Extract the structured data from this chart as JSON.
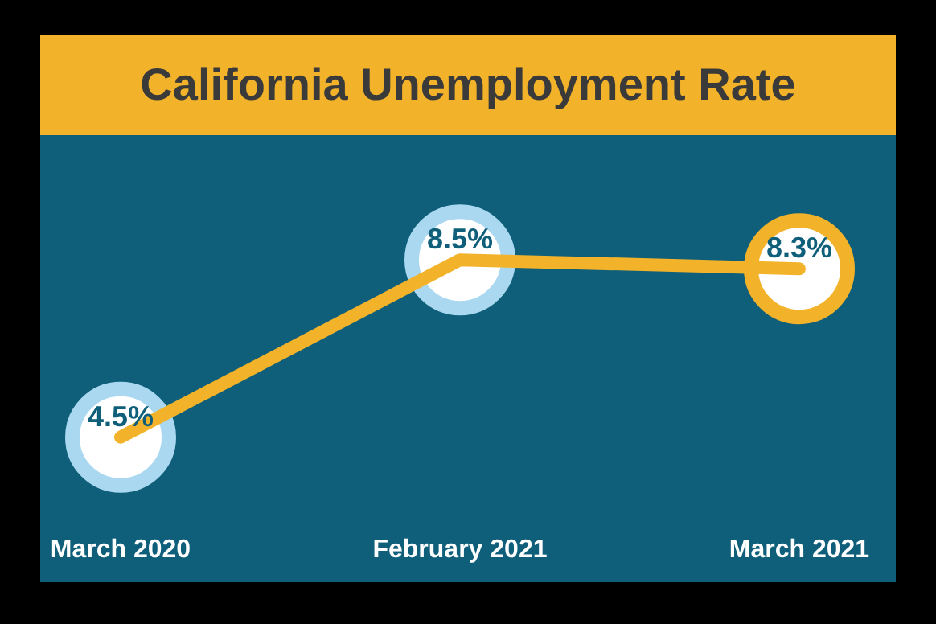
{
  "chart_data": {
    "type": "line",
    "title": "California Unemployment Rate",
    "categories": [
      "March 2020",
      "February 2021",
      "March 2021"
    ],
    "values": [
      4.5,
      8.5,
      8.3
    ],
    "value_labels": [
      "4.5%",
      "8.5%",
      "8.3%"
    ],
    "color": "#f2b32a",
    "colors": [
      "#a9d8f0",
      "#a9d8f0",
      "#f2b32a"
    ],
    "legend": false,
    "grid": false
  }
}
